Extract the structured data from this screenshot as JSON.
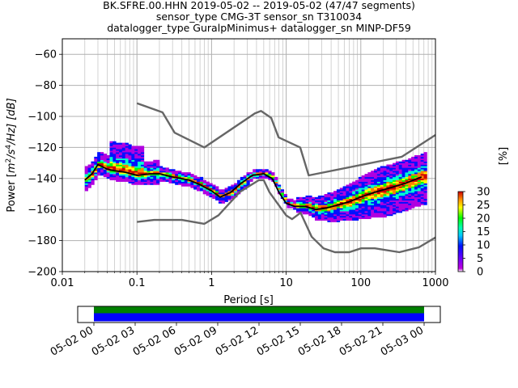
{
  "chart_data": {
    "type": "line",
    "title_lines": [
      "BK.SFRE.00.HHN   2019-05-02 -- 2019-05-02  (47/47 segments)",
      "sensor_type CMG-3T sensor_sn T310034",
      "datalogger_type GuralpMinimus+ datalogger_sn MINP-DF59"
    ],
    "xlabel": "Period [s]",
    "ylabel_parts": {
      "pre": "Power [",
      "m": "m",
      "two": "2",
      "s": "/s",
      "four": "4",
      "hz": "/Hz] [dB]"
    },
    "x_scale": "log",
    "xlim": [
      0.01,
      1000
    ],
    "ylim": [
      -200,
      -50
    ],
    "x_ticks": [
      0.01,
      0.1,
      1,
      10,
      100,
      1000
    ],
    "x_tick_labels": [
      "0.01",
      "0.1",
      "1",
      "10",
      "100",
      "1000"
    ],
    "y_ticks": [
      -200,
      -180,
      -160,
      -140,
      -120,
      -100,
      -80,
      -60
    ],
    "y_tick_labels": [
      "−200",
      "−180",
      "−160",
      "−140",
      "−120",
      "−100",
      "−80",
      "−60"
    ],
    "grid": true,
    "colorbar": {
      "label": "[%]",
      "range": [
        0,
        30
      ],
      "ticks": [
        0,
        5,
        10,
        15,
        20,
        25,
        30
      ],
      "tick_labels": [
        "0",
        "5",
        "10",
        "15",
        "20",
        "25",
        "30"
      ],
      "colors": [
        "#ffffff",
        "#b000e0",
        "#0010ff",
        "#00ffd0",
        "#00ff00",
        "#ffff00",
        "#ff8000",
        "#d00000"
      ]
    },
    "series": [
      {
        "role": "high-noise-model",
        "color": "#666666",
        "x": [
          0.1,
          0.22,
          0.32,
          0.8,
          3.8,
          4.6,
          6.3,
          7.9,
          15.4,
          20,
          354.8,
          1000
        ],
        "y": [
          -91.5,
          -97.4,
          -110.5,
          -120,
          -98,
          -96.5,
          -101,
          -113.5,
          -120,
          -138,
          -126,
          -112
        ]
      },
      {
        "role": "low-noise-model",
        "color": "#666666",
        "x": [
          0.1,
          0.17,
          0.4,
          0.8,
          1.24,
          2.4,
          4.3,
          5,
          6,
          10,
          12,
          15.6,
          21.9,
          31.6,
          45,
          70,
          101,
          154,
          328,
          600,
          1000
        ],
        "y": [
          -168,
          -166.7,
          -166.7,
          -169.2,
          -163.7,
          -148.6,
          -141.1,
          -141.1,
          -149,
          -163.8,
          -166.2,
          -162.1,
          -177.5,
          -185,
          -187.5,
          -187.5,
          -185,
          -185,
          -187.5,
          -184.4,
          -178
        ]
      },
      {
        "role": "mode",
        "color": "#000000",
        "x": [
          0.02,
          0.025,
          0.03,
          0.04,
          0.05,
          0.07,
          0.1,
          0.15,
          0.2,
          0.3,
          0.5,
          0.7,
          1,
          1.3,
          1.8,
          2.5,
          3.5,
          5,
          6.5,
          8,
          10,
          13,
          18,
          25,
          35,
          50,
          70,
          100,
          150,
          250,
          400,
          650
        ],
        "y": [
          -141,
          -137,
          -131,
          -134,
          -135,
          -136,
          -138,
          -137,
          -137,
          -139,
          -141,
          -144,
          -148,
          -152,
          -149,
          -143,
          -138,
          -137,
          -140,
          -149,
          -156,
          -158,
          -158,
          -160,
          -159,
          -157,
          -155,
          -152,
          -149,
          -146,
          -143,
          -139
        ]
      }
    ],
    "timeline": {
      "tick_labels": [
        "05-02 00",
        "05-02 03",
        "05-02 06",
        "05-02 09",
        "05-02 12",
        "05-02 15",
        "05-02 18",
        "05-02 21",
        "05-03 00"
      ],
      "hours": [
        0,
        3,
        6,
        9,
        12,
        15,
        18,
        21,
        24
      ],
      "range_hours": [
        0,
        24
      ],
      "coverage_hours": [
        0,
        24
      ],
      "data_color": "#0000ff",
      "available_color": "#008000"
    }
  }
}
